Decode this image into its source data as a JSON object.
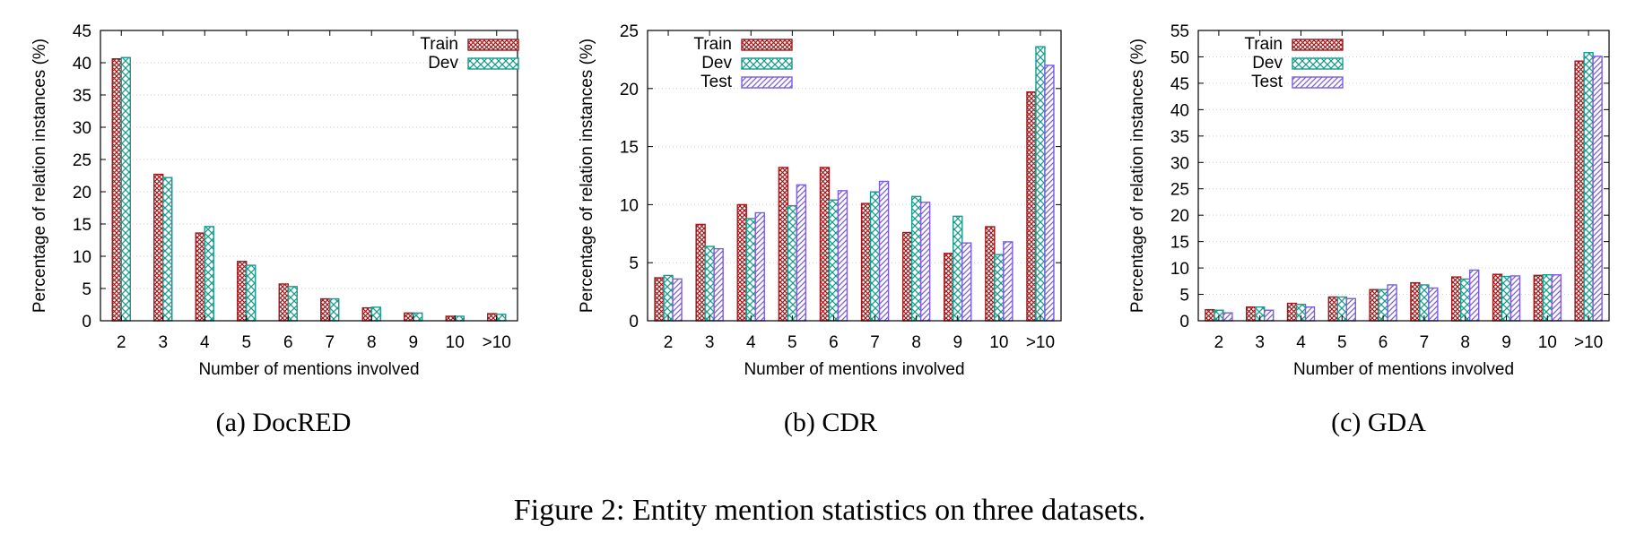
{
  "figure": {
    "caption": "Figure 2: Entity mention statistics on three datasets."
  },
  "colors": {
    "Train": "#9b1b1e",
    "Dev": "#1a9a8c",
    "Test": "#7c5ce0"
  },
  "chart_data": [
    {
      "type": "bar",
      "subcaption": "(a)  DocRED",
      "xlabel": "Number of mentions involved",
      "ylabel": "Percentage of relation instances (%)",
      "ylim": [
        0,
        45
      ],
      "yticks": [
        0,
        5,
        10,
        15,
        20,
        25,
        30,
        35,
        40,
        45
      ],
      "categories": [
        "2",
        "3",
        "4",
        "5",
        "6",
        "7",
        "8",
        "9",
        "10",
        ">10"
      ],
      "legend_position": "top-right",
      "series": [
        {
          "name": "Train",
          "pattern": "crosshatch-dense",
          "values": [
            40.6,
            22.7,
            13.6,
            9.2,
            5.7,
            3.4,
            2.0,
            1.2,
            0.7,
            1.1
          ]
        },
        {
          "name": "Dev",
          "pattern": "crosshatch",
          "values": [
            40.8,
            22.2,
            14.6,
            8.6,
            5.3,
            3.4,
            2.1,
            1.2,
            0.7,
            1.0
          ]
        }
      ]
    },
    {
      "type": "bar",
      "subcaption": "(b)  CDR",
      "xlabel": "Number of mentions involved",
      "ylabel": "Percentage of relation instances (%)",
      "ylim": [
        0,
        25
      ],
      "yticks": [
        0,
        5,
        10,
        15,
        20,
        25
      ],
      "categories": [
        "2",
        "3",
        "4",
        "5",
        "6",
        "7",
        "8",
        "9",
        "10",
        ">10"
      ],
      "legend_position": "top-left",
      "series": [
        {
          "name": "Train",
          "pattern": "crosshatch-dense",
          "values": [
            3.7,
            8.3,
            10.0,
            13.2,
            13.2,
            10.1,
            7.6,
            5.8,
            8.1,
            19.7
          ]
        },
        {
          "name": "Dev",
          "pattern": "crosshatch",
          "values": [
            3.9,
            6.4,
            8.8,
            9.9,
            10.4,
            11.1,
            10.7,
            9.0,
            5.7,
            23.6
          ]
        },
        {
          "name": "Test",
          "pattern": "diagonal",
          "values": [
            3.6,
            6.2,
            9.3,
            11.7,
            11.2,
            12.0,
            10.2,
            6.7,
            6.8,
            22.0
          ]
        }
      ]
    },
    {
      "type": "bar",
      "subcaption": "(c)  GDA",
      "xlabel": "Number of mentions involved",
      "ylabel": "Percentage of relation instances (%)",
      "ylim": [
        0,
        55
      ],
      "yticks": [
        0,
        5,
        10,
        15,
        20,
        25,
        30,
        35,
        40,
        45,
        50,
        55
      ],
      "categories": [
        "2",
        "3",
        "4",
        "5",
        "6",
        "7",
        "8",
        "9",
        "10",
        ">10"
      ],
      "legend_position": "top-left",
      "series": [
        {
          "name": "Train",
          "pattern": "crosshatch-dense",
          "values": [
            2.1,
            2.6,
            3.3,
            4.5,
            5.9,
            7.2,
            8.3,
            8.8,
            8.6,
            49.2
          ]
        },
        {
          "name": "Dev",
          "pattern": "crosshatch",
          "values": [
            2.0,
            2.6,
            3.1,
            4.5,
            5.9,
            6.8,
            7.9,
            8.4,
            8.7,
            50.8
          ]
        },
        {
          "name": "Test",
          "pattern": "diagonal",
          "values": [
            1.5,
            2.0,
            2.6,
            4.2,
            6.8,
            6.2,
            9.6,
            8.5,
            8.7,
            50.1
          ]
        }
      ]
    }
  ]
}
